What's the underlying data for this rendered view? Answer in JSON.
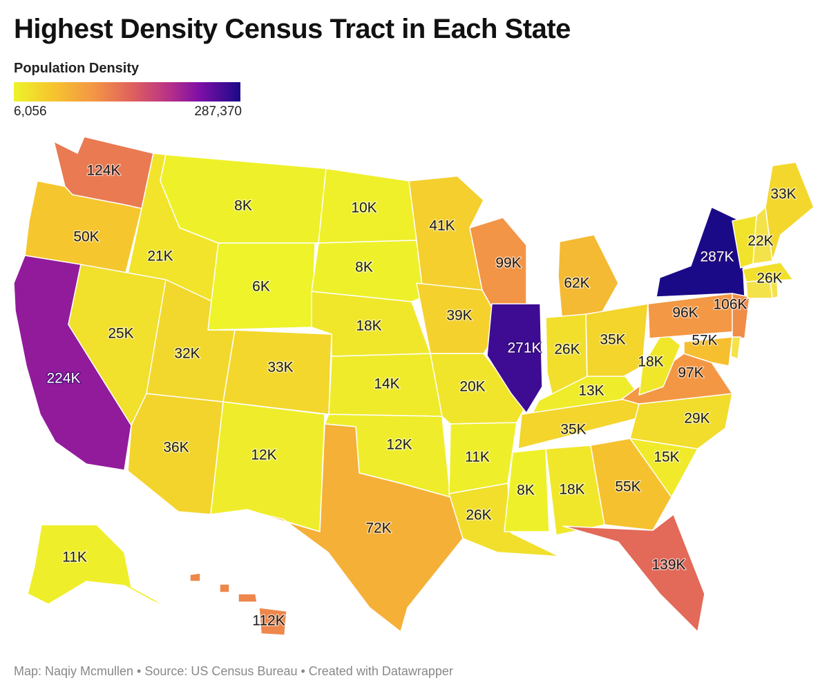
{
  "title": "Highest Density Census Tract in Each State",
  "legend": {
    "title": "Population Density",
    "min_label": "6,056",
    "max_label": "287,370",
    "min": 6056,
    "max": 287370,
    "colors": [
      "#eef32a",
      "#f6c32e",
      "#f39446",
      "#e0615d",
      "#b83287",
      "#7e0fa6",
      "#1a0a88"
    ]
  },
  "footer": "Map: Naqiy Mcmullen • Source: US Census Bureau • Created with Datawrapper",
  "map_data": {
    "type": "choropleth",
    "region": "United States",
    "variable": "Population Density",
    "states": [
      {
        "state": "WA",
        "label": "124K",
        "value": 124000
      },
      {
        "state": "OR",
        "label": "50K",
        "value": 50000
      },
      {
        "state": "CA",
        "label": "224K",
        "value": 224000
      },
      {
        "state": "ID",
        "label": "21K",
        "value": 21000
      },
      {
        "state": "NV",
        "label": "25K",
        "value": 25000
      },
      {
        "state": "MT",
        "label": "8K",
        "value": 8000
      },
      {
        "state": "WY",
        "label": "6K",
        "value": 6000
      },
      {
        "state": "UT",
        "label": "32K",
        "value": 32000
      },
      {
        "state": "AZ",
        "label": "36K",
        "value": 36000
      },
      {
        "state": "CO",
        "label": "33K",
        "value": 33000
      },
      {
        "state": "NM",
        "label": "12K",
        "value": 12000
      },
      {
        "state": "ND",
        "label": "10K",
        "value": 10000
      },
      {
        "state": "SD",
        "label": "8K",
        "value": 8000
      },
      {
        "state": "NE",
        "label": "18K",
        "value": 18000
      },
      {
        "state": "KS",
        "label": "14K",
        "value": 14000
      },
      {
        "state": "OK",
        "label": "12K",
        "value": 12000
      },
      {
        "state": "TX",
        "label": "72K",
        "value": 72000
      },
      {
        "state": "MN",
        "label": "41K",
        "value": 41000
      },
      {
        "state": "IA",
        "label": "39K",
        "value": 39000
      },
      {
        "state": "MO",
        "label": "20K",
        "value": 20000
      },
      {
        "state": "AR",
        "label": "11K",
        "value": 11000
      },
      {
        "state": "LA",
        "label": "26K",
        "value": 26000
      },
      {
        "state": "WI",
        "label": "99K",
        "value": 99000
      },
      {
        "state": "IL",
        "label": "271K",
        "value": 271000
      },
      {
        "state": "MI",
        "label": "62K",
        "value": 62000
      },
      {
        "state": "IN",
        "label": "26K",
        "value": 26000
      },
      {
        "state": "OH",
        "label": "35K",
        "value": 35000
      },
      {
        "state": "KY",
        "label": "13K",
        "value": 13000
      },
      {
        "state": "TN",
        "label": "35K",
        "value": 35000
      },
      {
        "state": "MS",
        "label": "8K",
        "value": 8000
      },
      {
        "state": "AL",
        "label": "18K",
        "value": 18000
      },
      {
        "state": "GA",
        "label": "55K",
        "value": 55000
      },
      {
        "state": "FL",
        "label": "139K",
        "value": 139000
      },
      {
        "state": "SC",
        "label": "15K",
        "value": 15000
      },
      {
        "state": "NC",
        "label": "29K",
        "value": 29000
      },
      {
        "state": "VA",
        "label": "97K",
        "value": 97000
      },
      {
        "state": "WV",
        "label": "18K",
        "value": 18000
      },
      {
        "state": "PA",
        "label": "96K",
        "value": 96000
      },
      {
        "state": "NY",
        "label": "287K",
        "value": 287000
      },
      {
        "state": "MD",
        "label": "57K",
        "value": 57000
      },
      {
        "state": "NJ",
        "label": "106K",
        "value": 106000
      },
      {
        "state": "MA",
        "label": "26K",
        "value": 26000
      },
      {
        "state": "VT",
        "label": "22K",
        "value": 22000
      },
      {
        "state": "ME",
        "label": "33K",
        "value": 33000
      },
      {
        "state": "AK",
        "label": "11K",
        "value": 11000
      },
      {
        "state": "HI",
        "label": "112K",
        "value": 112000
      },
      {
        "state": "NH",
        "label": "",
        "value": null
      },
      {
        "state": "CT",
        "label": "",
        "value": null
      },
      {
        "state": "RI",
        "label": "",
        "value": null
      },
      {
        "state": "DE",
        "label": "",
        "value": null
      }
    ]
  }
}
